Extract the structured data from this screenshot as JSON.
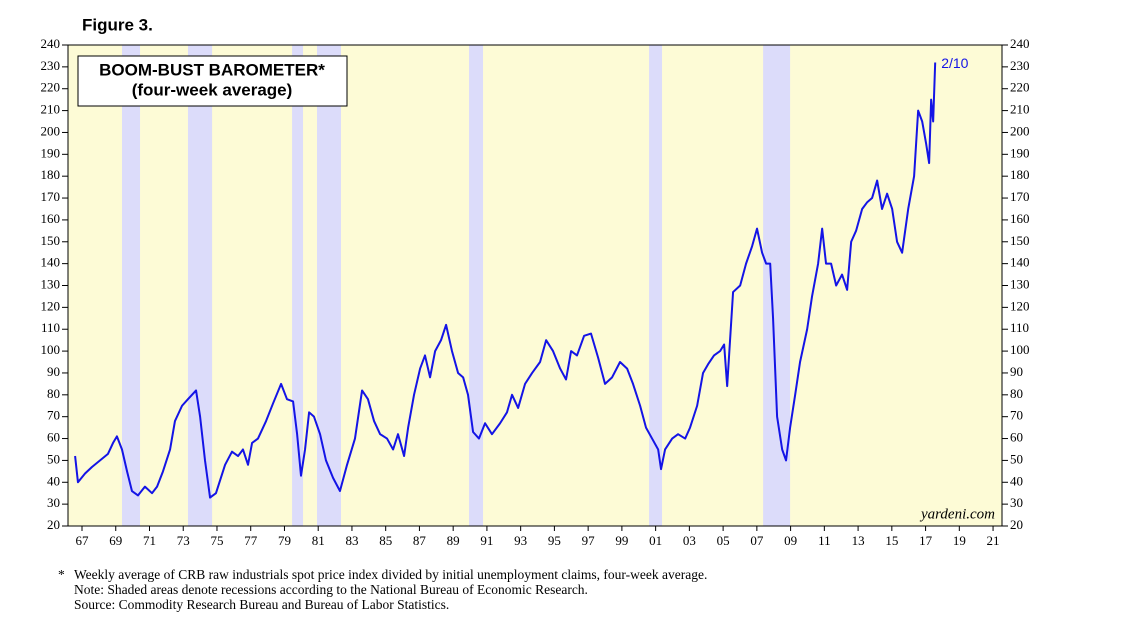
{
  "chart_data": {
    "type": "line",
    "figure_label": "Figure 3.",
    "title": "BOOM-BUST BAROMETER*",
    "subtitle": "(four-week average)",
    "annotation": "2/10",
    "watermark": "yardeni.com",
    "footnote_marker": "*",
    "footnotes": [
      "Weekly average of CRB raw industrials spot price index divided by initial unemployment claims, four-week average.",
      "Note: Shaded areas denote recessions according to the National Bureau of Economic Research.",
      "Source: Commodity Research Bureau and Bureau of Labor Statistics."
    ],
    "background": "#fdfbd6",
    "recession_color": "#dcdcfa",
    "recessions": [
      [
        1969.37,
        1970.44
      ],
      [
        1973.28,
        1974.71
      ],
      [
        1979.45,
        1980.1
      ],
      [
        1980.93,
        1982.35
      ],
      [
        1989.94,
        1990.77
      ],
      [
        2000.61,
        2001.38
      ],
      [
        2007.37,
        2008.97
      ]
    ],
    "xlim": [
      1966.17,
      2021.53
    ],
    "xticks": [
      {
        "value": 1967,
        "label": "67"
      },
      {
        "value": 1969,
        "label": "69"
      },
      {
        "value": 1971,
        "label": "71"
      },
      {
        "value": 1973,
        "label": "73"
      },
      {
        "value": 1975,
        "label": "75"
      },
      {
        "value": 1977,
        "label": "77"
      },
      {
        "value": 1979,
        "label": "79"
      },
      {
        "value": 1981,
        "label": "81"
      },
      {
        "value": 1983,
        "label": "83"
      },
      {
        "value": 1985,
        "label": "85"
      },
      {
        "value": 1987,
        "label": "87"
      },
      {
        "value": 1989,
        "label": "89"
      },
      {
        "value": 1991,
        "label": "91"
      },
      {
        "value": 1993,
        "label": "93"
      },
      {
        "value": 1995,
        "label": "95"
      },
      {
        "value": 1997,
        "label": "97"
      },
      {
        "value": 1999,
        "label": "99"
      },
      {
        "value": 2001,
        "label": "01"
      },
      {
        "value": 2003,
        "label": "03"
      },
      {
        "value": 2005,
        "label": "05"
      },
      {
        "value": 2007,
        "label": "07"
      },
      {
        "value": 2009,
        "label": "09"
      },
      {
        "value": 2011,
        "label": "11"
      },
      {
        "value": 2013,
        "label": "13"
      },
      {
        "value": 2015,
        "label": "15"
      },
      {
        "value": 2017,
        "label": "17"
      },
      {
        "value": 2019,
        "label": "19"
      },
      {
        "value": 2021,
        "label": "21"
      }
    ],
    "ylim": [
      20,
      240
    ],
    "yticks": [
      20,
      30,
      40,
      50,
      60,
      70,
      80,
      90,
      100,
      110,
      120,
      130,
      140,
      150,
      160,
      170,
      180,
      190,
      200,
      210,
      220,
      230,
      240
    ],
    "y2lim": [
      20,
      240
    ],
    "y2ticks": [
      20,
      30,
      40,
      50,
      60,
      70,
      80,
      90,
      100,
      110,
      120,
      130,
      140,
      150,
      160,
      170,
      180,
      190,
      200,
      210,
      220,
      230,
      240
    ],
    "grid": false,
    "x": [
      1966.59,
      1966.76,
      1967.18,
      1967.59,
      1968.07,
      1968.54,
      1968.84,
      1969.07,
      1969.37,
      1969.67,
      1969.96,
      1970.32,
      1970.73,
      1971.15,
      1971.45,
      1971.8,
      1972.22,
      1972.51,
      1972.93,
      1973.28,
      1973.76,
      1974.0,
      1974.29,
      1974.59,
      1974.94,
      1975.48,
      1975.89,
      1976.25,
      1976.54,
      1976.84,
      1977.08,
      1977.43,
      1977.91,
      1978.32,
      1978.8,
      1979.15,
      1979.51,
      1979.75,
      1979.98,
      1980.22,
      1980.46,
      1980.75,
      1981.11,
      1981.46,
      1981.88,
      1982.29,
      1982.71,
      1983.18,
      1983.6,
      1983.95,
      1984.31,
      1984.67,
      1985.08,
      1985.44,
      1985.73,
      1986.09,
      1986.33,
      1986.68,
      1987.04,
      1987.33,
      1987.63,
      1987.93,
      1988.28,
      1988.58,
      1988.93,
      1989.29,
      1989.59,
      1989.88,
      1990.18,
      1990.53,
      1990.89,
      1991.3,
      1991.78,
      1992.19,
      1992.49,
      1992.85,
      1993.26,
      1993.68,
      1994.15,
      1994.51,
      1994.92,
      1995.34,
      1995.69,
      1995.99,
      1996.34,
      1996.76,
      1997.17,
      1997.59,
      1998.0,
      1998.42,
      1998.89,
      1999.31,
      1999.66,
      2000.08,
      2000.43,
      2000.79,
      2001.15,
      2001.32,
      2001.56,
      2001.98,
      2002.33,
      2002.75,
      2003.04,
      2003.46,
      2003.81,
      2004.11,
      2004.46,
      2004.82,
      2005.06,
      2005.24,
      2005.59,
      2006.01,
      2006.36,
      2006.72,
      2007.01,
      2007.31,
      2007.55,
      2007.79,
      2007.96,
      2008.2,
      2008.5,
      2008.73,
      2008.97,
      2009.27,
      2009.56,
      2009.98,
      2010.27,
      2010.63,
      2010.87,
      2011.1,
      2011.4,
      2011.7,
      2012.05,
      2012.35,
      2012.59,
      2012.88,
      2013.24,
      2013.53,
      2013.83,
      2014.13,
      2014.42,
      2014.72,
      2015.02,
      2015.31,
      2015.61,
      2015.97,
      2016.32,
      2016.56,
      2016.8,
      2017.03,
      2017.21,
      2017.33,
      2017.45,
      2017.57
    ],
    "series": [
      {
        "color": "#1414e6",
        "values": [
          52,
          40,
          44,
          47,
          50,
          53,
          58,
          61,
          55,
          45,
          36,
          34,
          38,
          35,
          38,
          45,
          55,
          68,
          75,
          78,
          82,
          70,
          50,
          33,
          35,
          48,
          54,
          52,
          55,
          48,
          58,
          60,
          68,
          76,
          85,
          78,
          77,
          62,
          43,
          55,
          72,
          70,
          62,
          50,
          42,
          36,
          48,
          60,
          82,
          78,
          68,
          62,
          60,
          55,
          62,
          52,
          65,
          80,
          92,
          98,
          88,
          100,
          105,
          112,
          100,
          90,
          88,
          80,
          63,
          60,
          67,
          62,
          67,
          72,
          80,
          74,
          85,
          90,
          95,
          105,
          100,
          92,
          87,
          100,
          98,
          107,
          108,
          97,
          85,
          88,
          95,
          92,
          85,
          75,
          65,
          60,
          55,
          46,
          55,
          60,
          62,
          60,
          65,
          75,
          90,
          94,
          98,
          100,
          103,
          84,
          127,
          130,
          140,
          148,
          156,
          145,
          140,
          140,
          115,
          70,
          55,
          50,
          65,
          80,
          95,
          110,
          125,
          140,
          156,
          140,
          140,
          130,
          135,
          128,
          150,
          155,
          165,
          168,
          170,
          178,
          165,
          172,
          165,
          150,
          145,
          165,
          180,
          210,
          205,
          195,
          186,
          215,
          205,
          232
        ]
      }
    ]
  }
}
